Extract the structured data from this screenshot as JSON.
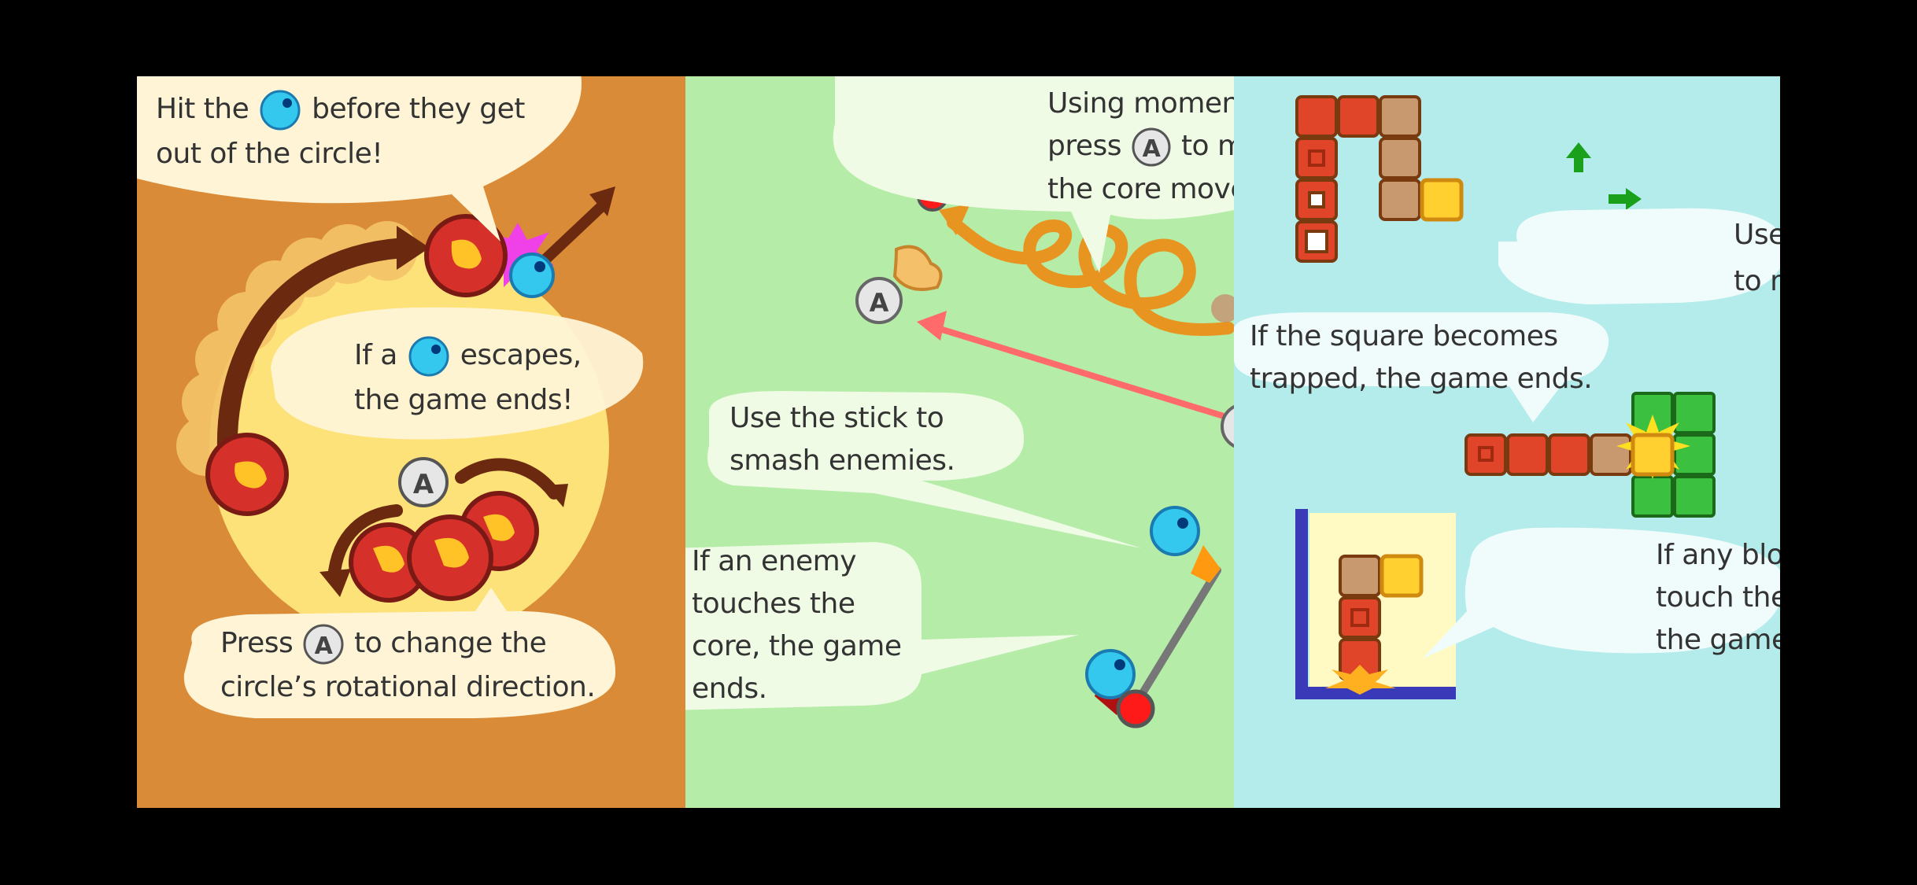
{
  "panel1": {
    "tip_hit_pre": "Hit the",
    "tip_hit_post": "before they get",
    "tip_hit_line2": "out of the circle!",
    "tip_escape_pre": "If a",
    "tip_escape_post": "escapes,",
    "tip_escape_line2": "the game ends!",
    "tip_press_pre": "Press",
    "tip_press_post": "to change the",
    "tip_press_line2": "circle’s rotational direction."
  },
  "panel2": {
    "tip_momentum_line1": "Using momentum,",
    "tip_momentum_pre": "press",
    "tip_momentum_post": "to make",
    "tip_momentum_line3": "the core move.",
    "tip_stick_line1": "Use the stick to",
    "tip_stick_line2": "smash enemies.",
    "tip_enemy_line1": "If an enemy",
    "tip_enemy_line2": "touches the",
    "tip_enemy_line3": "core, the game",
    "tip_enemy_line4": "ends."
  },
  "panel3": {
    "tip_move_pre": "Use",
    "tip_move_line2": "to move.",
    "tip_trapped_line1": "If the square becomes",
    "tip_trapped_line2": "trapped, the game ends.",
    "tip_bottom_line1": "If any blocks",
    "tip_bottom_line2": "touch the bottom,",
    "tip_bottom_line3": "the game ends."
  },
  "button_label": "A",
  "colors": {
    "panel1_bg": "#d98b38",
    "panel2_bg": "#b5eca8",
    "panel3_bg": "#b3ecea",
    "bubble_warm": "#fff4d6",
    "bubble_green": "#f0fbe6",
    "bubble_cyan": "#f0fcfc",
    "enemy": "#34c8ee",
    "core": "#ff1a1a"
  }
}
